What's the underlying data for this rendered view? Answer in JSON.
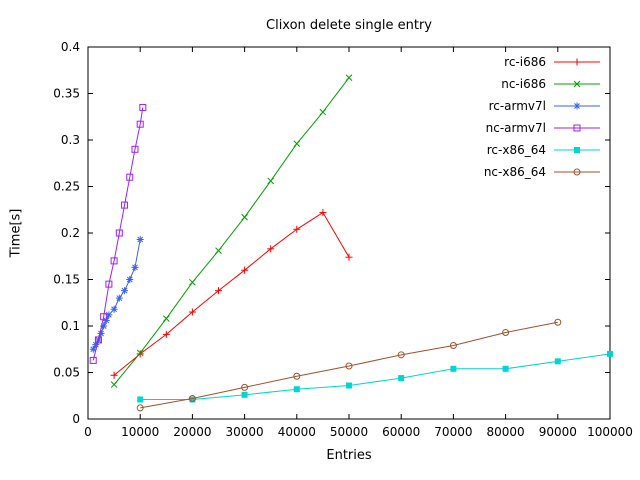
{
  "chart_data": {
    "type": "line",
    "title": "Clixon delete single entry",
    "xlabel": "Entries",
    "ylabel": "Time[s]",
    "xlim": [
      0,
      100000
    ],
    "ylim": [
      0,
      0.4
    ],
    "grid": false,
    "legend_position": "top-right-inside",
    "x_ticks": [
      "0",
      "10000",
      "20000",
      "30000",
      "40000",
      "50000",
      "60000",
      "70000",
      "80000",
      "90000",
      "100000"
    ],
    "y_ticks": [
      "0",
      "0.05",
      "0.1",
      "0.15",
      "0.2",
      "0.25",
      "0.3",
      "0.35",
      "0.4"
    ],
    "series": [
      {
        "name": "rc-i686",
        "color": "#ff0000",
        "marker": "plus",
        "x": [
          5000,
          10000,
          15000,
          20000,
          25000,
          30000,
          35000,
          40000,
          45000,
          50000
        ],
        "y": [
          0.047,
          0.07,
          0.091,
          0.115,
          0.138,
          0.16,
          0.183,
          0.204,
          0.222,
          0.174
        ]
      },
      {
        "name": "nc-i686",
        "color": "#00a000",
        "marker": "cross",
        "x": [
          5000,
          10000,
          15000,
          20000,
          25000,
          30000,
          35000,
          40000,
          45000,
          50000
        ],
        "y": [
          0.037,
          0.071,
          0.108,
          0.147,
          0.181,
          0.217,
          0.256,
          0.296,
          0.33,
          0.367
        ]
      },
      {
        "name": "rc-armv7l",
        "color": "#3a63e8",
        "marker": "asterisk",
        "x": [
          1000,
          1500,
          2000,
          2500,
          3000,
          3500,
          4000,
          5000,
          6000,
          7000,
          8000,
          9000,
          10000
        ],
        "y": [
          0.075,
          0.08,
          0.085,
          0.092,
          0.1,
          0.106,
          0.112,
          0.118,
          0.13,
          0.138,
          0.15,
          0.163,
          0.193
        ]
      },
      {
        "name": "nc-armv7l",
        "color": "#a020f0",
        "marker": "square-open",
        "x": [
          1000,
          2000,
          3000,
          4000,
          5000,
          6000,
          7000,
          8000,
          9000,
          10000,
          10500
        ],
        "y": [
          0.063,
          0.085,
          0.11,
          0.145,
          0.17,
          0.2,
          0.23,
          0.26,
          0.29,
          0.317,
          0.335
        ]
      },
      {
        "name": "rc-x86_64",
        "color": "#00d5d5",
        "marker": "square-filled",
        "x": [
          10000,
          20000,
          30000,
          40000,
          50000,
          60000,
          70000,
          80000,
          90000,
          100000
        ],
        "y": [
          0.021,
          0.021,
          0.026,
          0.032,
          0.036,
          0.044,
          0.054,
          0.054,
          0.062,
          0.07
        ]
      },
      {
        "name": "nc-x86_64",
        "color": "#a0522d",
        "marker": "circle-open",
        "x": [
          10000,
          20000,
          30000,
          40000,
          50000,
          60000,
          70000,
          80000,
          90000
        ],
        "y": [
          0.012,
          0.022,
          0.034,
          0.046,
          0.057,
          0.069,
          0.079,
          0.093,
          0.104
        ]
      }
    ]
  }
}
